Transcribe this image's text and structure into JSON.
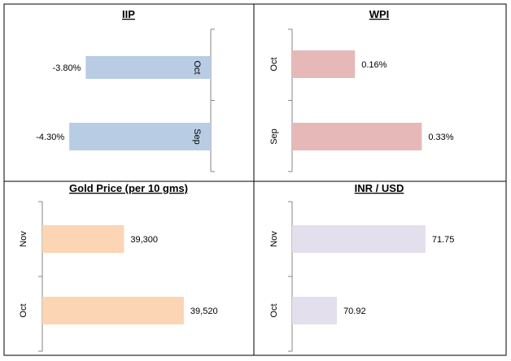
{
  "chart_data": [
    {
      "type": "bar",
      "orientation": "horizontal",
      "title": "IIP",
      "categories": [
        "Oct",
        "Sep"
      ],
      "values": [
        -3.8,
        -4.3
      ],
      "value_labels": [
        "-3.80%",
        "-4.30%"
      ],
      "xlim": [
        -4.6,
        0
      ],
      "color": "#b8cce4",
      "category_label_side": "inside",
      "value_label_side": "outside"
    },
    {
      "type": "bar",
      "orientation": "horizontal",
      "title": "WPI",
      "categories": [
        "Oct",
        "Sep"
      ],
      "values": [
        0.16,
        0.33
      ],
      "value_labels": [
        "0.16%",
        "0.33%"
      ],
      "xlim": [
        0,
        0.35
      ],
      "color": "#e6b9b8",
      "category_label_side": "outside",
      "value_label_side": "outside"
    },
    {
      "type": "bar",
      "orientation": "horizontal",
      "title": "Gold Price (per 10 gms)",
      "categories": [
        "Nov",
        "Oct"
      ],
      "values": [
        39300,
        39520
      ],
      "value_labels": [
        "39,300",
        "39,520"
      ],
      "xlim": [
        39000,
        39580
      ],
      "color": "#fcd5b4",
      "category_label_side": "outside",
      "value_label_side": "outside"
    },
    {
      "type": "bar",
      "orientation": "horizontal",
      "title": "INR / USD",
      "categories": [
        "Nov",
        "Oct"
      ],
      "values": [
        71.75,
        70.92
      ],
      "value_labels": [
        "71.75",
        "70.92"
      ],
      "xlim": [
        70.5,
        71.85
      ],
      "color": "#e4dfec",
      "category_label_side": "outside",
      "value_label_side": "outside"
    }
  ],
  "colors": {
    "panel_border": "#000000",
    "axis": "#868686",
    "title_underline": "#4f81bd"
  }
}
